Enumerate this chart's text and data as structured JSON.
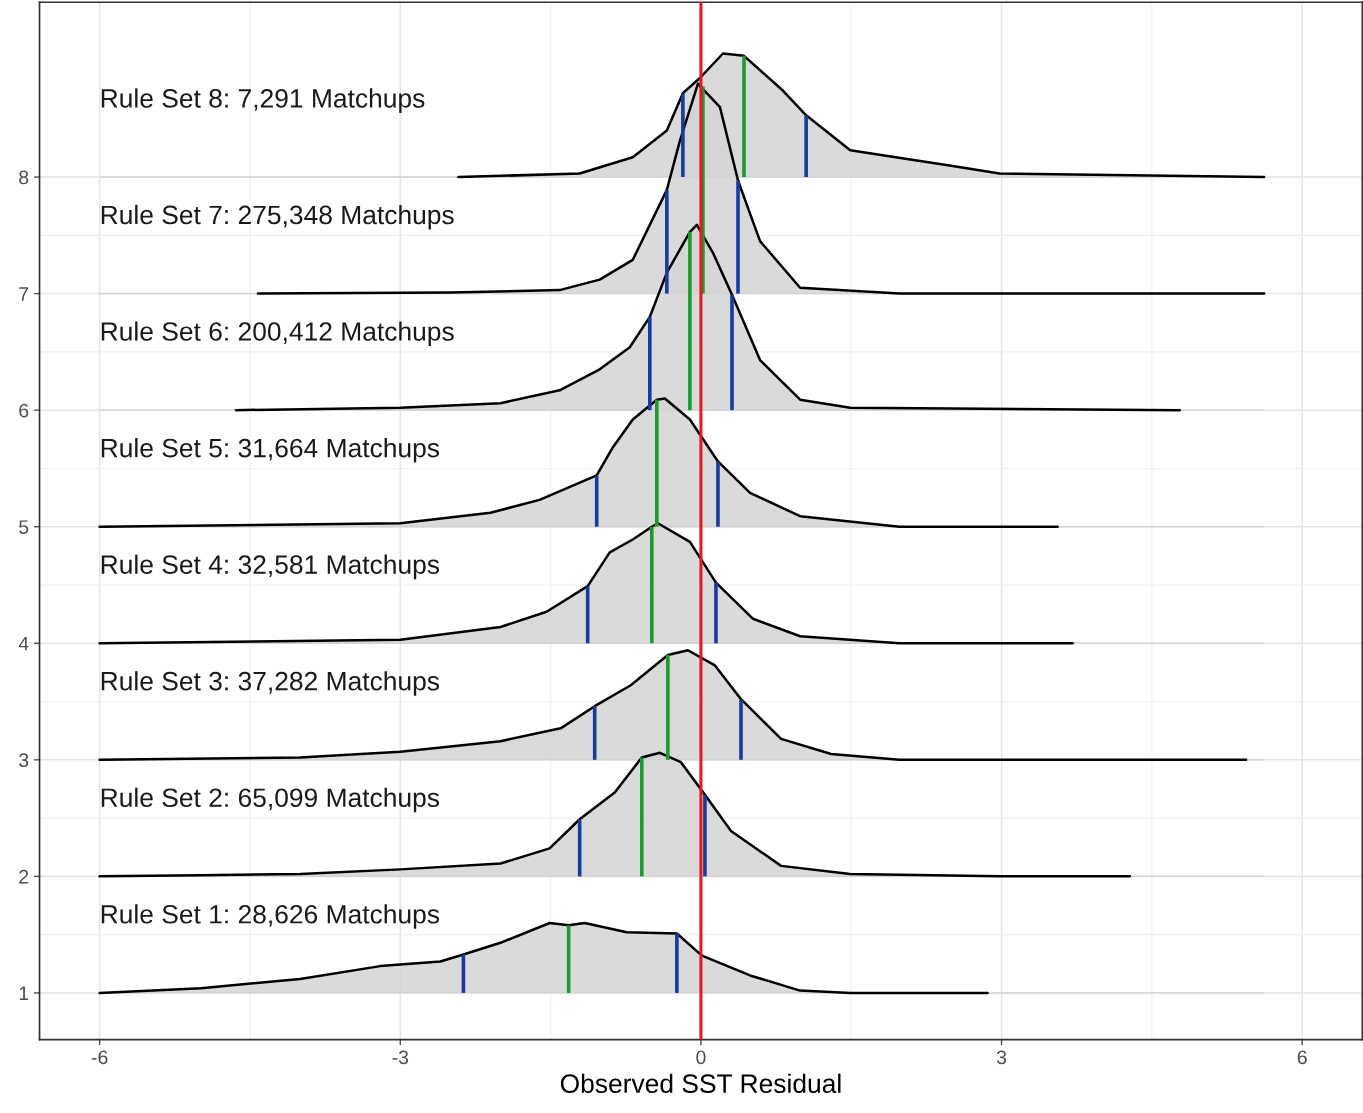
{
  "chart_data": {
    "type": "area",
    "xlabel": "Observed SST Residual",
    "xlim": [
      -6.6,
      6.6
    ],
    "ylim": [
      0.6,
      9.5
    ],
    "xticks": [
      -6,
      -3,
      0,
      3,
      6
    ],
    "yticks": [
      1,
      2,
      3,
      4,
      5,
      6,
      7,
      8
    ],
    "grid": true,
    "legend": false,
    "series": [
      {
        "type": "area",
        "color": "#d3d3d3",
        "x": [
          -6,
          -4.99,
          -4,
          -3.2,
          -2.6,
          -2.37,
          -2.0,
          -1.51,
          -1.32,
          -1.16,
          -0.74,
          -0.24,
          0.01,
          0.49,
          0.99,
          1.49,
          2.86
        ],
        "values": [
          1,
          1.04,
          1.12,
          1.23,
          1.27,
          1.33,
          1.43,
          1.6,
          1.58,
          1.6,
          1.52,
          1.51,
          1.32,
          1.15,
          1.02,
          1.0,
          1.0
        ]
      },
      {
        "type": "area",
        "color": "#d3d3d3",
        "x": [
          -6,
          -4.99,
          -4,
          -3,
          -2,
          -1.51,
          -1.21,
          -0.86,
          -0.59,
          -0.41,
          -0.2,
          0.04,
          0.3,
          0.8,
          1.49,
          2.98,
          4.28
        ],
        "values": [
          2,
          2.01,
          2.02,
          2.06,
          2.11,
          2.24,
          2.49,
          2.72,
          3.02,
          3.06,
          2.98,
          2.7,
          2.39,
          2.09,
          2.02,
          2.0,
          2.0
        ]
      },
      {
        "type": "area",
        "color": "#d3d3d3",
        "x": [
          -6,
          -4,
          -3,
          -2,
          -1.4,
          -1.06,
          -0.7,
          -0.33,
          -0.13,
          0.14,
          0.4,
          0.8,
          1.3,
          1.98,
          5.44
        ],
        "values": [
          3,
          3.02,
          3.07,
          3.16,
          3.27,
          3.46,
          3.64,
          3.9,
          3.94,
          3.81,
          3.52,
          3.18,
          3.05,
          3.0,
          3.0
        ]
      },
      {
        "type": "area",
        "color": "#d3d3d3",
        "x": [
          -6,
          -3,
          -2,
          -1.54,
          -1.13,
          -0.91,
          -0.68,
          -0.49,
          -0.43,
          -0.11,
          0.15,
          0.52,
          0.99,
          1.98,
          3.71
        ],
        "values": [
          4,
          4.03,
          4.14,
          4.27,
          4.49,
          4.78,
          4.89,
          5.0,
          5.03,
          4.87,
          4.52,
          4.21,
          4.06,
          4.0,
          4.0
        ]
      },
      {
        "type": "area",
        "color": "#d3d3d3",
        "x": [
          -6,
          -3,
          -2.1,
          -1.61,
          -1.04,
          -0.88,
          -0.68,
          -0.44,
          -0.36,
          -0.11,
          0.17,
          0.49,
          0.99,
          1.98,
          3.56
        ],
        "values": [
          5,
          5.03,
          5.12,
          5.23,
          5.44,
          5.68,
          5.92,
          6.09,
          6.1,
          5.92,
          5.56,
          5.29,
          5.09,
          5.0,
          5.0
        ]
      },
      {
        "type": "area",
        "color": "#d3d3d3",
        "x": [
          -4.64,
          -3,
          -2,
          -1.41,
          -1.01,
          -0.71,
          -0.51,
          -0.34,
          -0.11,
          -0.04,
          0.12,
          0.31,
          0.59,
          0.99,
          1.49,
          4.78
        ],
        "values": [
          6,
          6.02,
          6.06,
          6.17,
          6.35,
          6.54,
          6.8,
          7.18,
          7.53,
          7.59,
          7.35,
          6.99,
          6.43,
          6.09,
          6.02,
          6.0
        ]
      },
      {
        "type": "area",
        "color": "#d3d3d3",
        "x": [
          -4.42,
          -2.5,
          -1.41,
          -1.01,
          -0.68,
          -0.34,
          -0.21,
          -0.03,
          0.19,
          0.37,
          0.59,
          0.99,
          1.98,
          5.62
        ],
        "values": [
          7,
          7.01,
          7.03,
          7.12,
          7.29,
          7.89,
          8.31,
          8.8,
          8.6,
          7.97,
          7.45,
          7.05,
          7.0,
          7.0
        ]
      },
      {
        "type": "area",
        "color": "#d3d3d3",
        "x": [
          -2.42,
          -1.21,
          -0.68,
          -0.34,
          -0.18,
          -0.01,
          0.22,
          0.43,
          0.82,
          1.05,
          1.49,
          2.48,
          2.98,
          5.62
        ],
        "values": [
          8,
          8.03,
          8.17,
          8.4,
          8.72,
          8.85,
          9.06,
          9.04,
          8.74,
          8.53,
          8.23,
          8.1,
          8.03,
          8.0
        ]
      },
      {
        "type": "line",
        "color": "#1a3a9c",
        "x": [
          -2.37,
          -2.37
        ],
        "values": [
          1,
          1.33
        ]
      },
      {
        "type": "line",
        "color": "#1a3a9c",
        "x": [
          -0.24,
          -0.24
        ],
        "values": [
          1,
          1.51
        ]
      },
      {
        "type": "line",
        "color": "#1a3a9c",
        "x": [
          -1.21,
          -1.21
        ],
        "values": [
          2,
          2.49
        ]
      },
      {
        "type": "line",
        "color": "#1a3a9c",
        "x": [
          0.04,
          0.04
        ],
        "values": [
          2,
          2.7
        ]
      },
      {
        "type": "line",
        "color": "#1a3a9c",
        "x": [
          -1.06,
          -1.06
        ],
        "values": [
          3,
          3.46
        ]
      },
      {
        "type": "line",
        "color": "#1a3a9c",
        "x": [
          0.4,
          0.4
        ],
        "values": [
          3,
          3.52
        ]
      },
      {
        "type": "line",
        "color": "#1a3a9c",
        "x": [
          -1.13,
          -1.13
        ],
        "values": [
          4,
          4.49
        ]
      },
      {
        "type": "line",
        "color": "#1a3a9c",
        "x": [
          0.15,
          0.15
        ],
        "values": [
          4,
          4.52
        ]
      },
      {
        "type": "line",
        "color": "#1a3a9c",
        "x": [
          -1.04,
          -1.04
        ],
        "values": [
          5,
          5.44
        ]
      },
      {
        "type": "line",
        "color": "#1a3a9c",
        "x": [
          0.17,
          0.17
        ],
        "values": [
          5,
          5.56
        ]
      },
      {
        "type": "line",
        "color": "#1a3a9c",
        "x": [
          -0.51,
          -0.51
        ],
        "values": [
          6,
          6.8
        ]
      },
      {
        "type": "line",
        "color": "#1a3a9c",
        "x": [
          0.31,
          0.31
        ],
        "values": [
          6,
          6.99
        ]
      },
      {
        "type": "line",
        "color": "#1a3a9c",
        "x": [
          -0.34,
          -0.34
        ],
        "values": [
          7,
          7.89
        ]
      },
      {
        "type": "line",
        "color": "#1a3a9c",
        "x": [
          0.37,
          0.37
        ],
        "values": [
          7,
          7.97
        ]
      },
      {
        "type": "line",
        "color": "#1a3a9c",
        "x": [
          -0.18,
          -0.18
        ],
        "values": [
          8,
          8.72
        ]
      },
      {
        "type": "line",
        "color": "#1a3a9c",
        "x": [
          1.05,
          1.05
        ],
        "values": [
          8,
          8.53
        ]
      },
      {
        "type": "line",
        "color": "#1e9a2e",
        "x": [
          -1.32,
          -1.32
        ],
        "values": [
          1,
          1.58
        ]
      },
      {
        "type": "line",
        "color": "#1e9a2e",
        "x": [
          -0.59,
          -0.59
        ],
        "values": [
          2,
          3.02
        ]
      },
      {
        "type": "line",
        "color": "#1e9a2e",
        "x": [
          -0.33,
          -0.33
        ],
        "values": [
          3,
          3.9
        ]
      },
      {
        "type": "line",
        "color": "#1e9a2e",
        "x": [
          -0.49,
          -0.49
        ],
        "values": [
          4,
          5.0
        ]
      },
      {
        "type": "line",
        "color": "#1e9a2e",
        "x": [
          -0.44,
          -0.44
        ],
        "values": [
          5,
          6.09
        ]
      },
      {
        "type": "line",
        "color": "#1e9a2e",
        "x": [
          -0.11,
          -0.11
        ],
        "values": [
          6,
          7.53
        ]
      },
      {
        "type": "line",
        "color": "#1e9a2e",
        "x": [
          0.02,
          0.02
        ],
        "values": [
          7,
          8.78
        ]
      },
      {
        "type": "line",
        "color": "#1e9a2e",
        "x": [
          0.43,
          0.43
        ],
        "values": [
          8,
          9.04
        ]
      }
    ],
    "ref_lines": [
      {
        "axis": "x",
        "value": 0,
        "color": "#e41a1c",
        "line_style": "solid"
      }
    ],
    "annotations": [
      "Rule Set 1: 28,626 Matchups",
      "Rule Set 2: 65,099 Matchups",
      "Rule Set 3: 37,282 Matchups",
      "Rule Set 4: 32,581 Matchups",
      "Rule Set 5: 31,664 Matchups",
      "Rule Set 6: 200,412 Matchups",
      "Rule Set 7: 275,348 Matchups",
      "Rule Set 8: 7,291 Matchups"
    ]
  }
}
